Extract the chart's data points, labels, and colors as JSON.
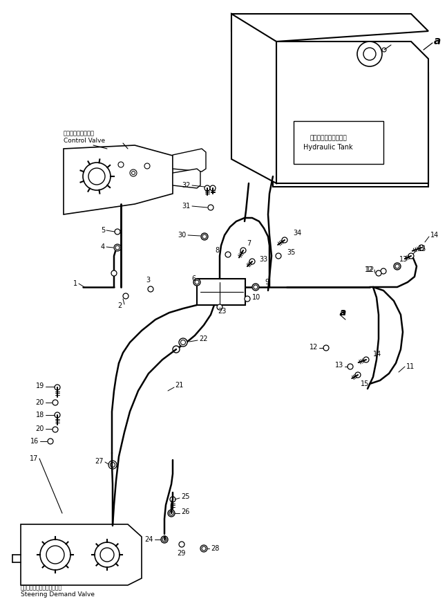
{
  "bg_color": "#ffffff",
  "line_color": "#000000",
  "figsize": [
    6.47,
    8.66
  ],
  "dpi": 100,
  "labels": {
    "control_valve_jp": "コントロールバルブ",
    "control_valve_en": "Control Valve",
    "hydraulic_tank_jp": "ハイドロリックタンク",
    "hydraulic_tank_en": "Hydraulic Tank",
    "steering_valve_jp": "ステアリングデマンドバルブ",
    "steering_valve_en": "Steering Demand Valve",
    "label_a": "a"
  }
}
